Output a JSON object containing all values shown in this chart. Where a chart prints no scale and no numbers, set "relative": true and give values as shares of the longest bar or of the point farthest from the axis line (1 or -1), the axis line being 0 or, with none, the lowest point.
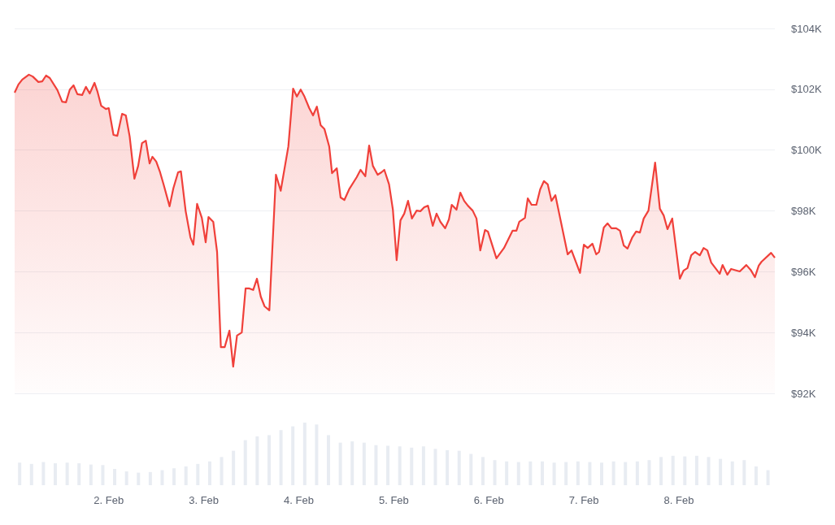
{
  "chart_data": [
    {
      "type": "area",
      "color": "#f0403a",
      "grid": "y",
      "tick_labels": "y",
      "xlim": [
        "--02-01T00:14",
        "--02-09T00:14"
      ],
      "ylim": [
        92,
        104
      ],
      "yticks": [
        {
          "value": 92,
          "label": "$92K"
        },
        {
          "value": 94,
          "label": "$94K"
        },
        {
          "value": 96,
          "label": "$96K"
        },
        {
          "value": 98,
          "label": "$98K"
        },
        {
          "value": 100,
          "label": "$100K"
        },
        {
          "value": 102,
          "label": "$102K"
        },
        {
          "value": 104,
          "label": "$104K"
        }
      ],
      "x": [
        "--02-01T00:14",
        "--02-01T01:12",
        "--02-01T02:10",
        "--02-01T03:50",
        "--02-01T04:48",
        "--02-01T06:14",
        "--02-01T07:12",
        "--02-01T08:10",
        "--02-01T09:07",
        "--02-01T11:02",
        "--02-01T12:14",
        "--02-01T13:12",
        "--02-01T14:10",
        "--02-01T15:07",
        "--02-01T16:05",
        "--02-01T17:17",
        "--02-01T18:14",
        "--02-01T19:12",
        "--02-01T20:24",
        "--02-01T21:07",
        "--02-01T22:05",
        "--02-01T23:17",
        "--02-02T00:00",
        "--02-02T01:12",
        "--02-02T02:10",
        "--02-02T03:22",
        "--02-02T04:19",
        "--02-02T05:17",
        "--02-02T06:29",
        "--02-02T07:26",
        "--02-02T08:24",
        "--02-02T09:22",
        "--02-02T10:19",
        "--02-02T11:02",
        "--02-02T12:00",
        "--02-02T12:58",
        "--02-02T13:55",
        "--02-02T15:22",
        "--02-02T16:19",
        "--02-02T17:31",
        "--02-02T18:14",
        "--02-02T19:26",
        "--02-02T20:38",
        "--02-02T21:22",
        "--02-02T22:19",
        "--02-02T23:31",
        "--02-03T00:29",
        "--02-03T01:12",
        "--02-03T02:24",
        "--02-03T03:22",
        "--02-03T04:19",
        "--02-03T05:17",
        "--02-03T06:29",
        "--02-03T07:26",
        "--02-03T08:24",
        "--02-03T09:36",
        "--02-03T10:34",
        "--02-03T11:31",
        "--02-03T12:29",
        "--02-03T13:26",
        "--02-03T14:24",
        "--02-03T15:22",
        "--02-03T16:34",
        "--02-03T18:14",
        "--02-03T19:26",
        "--02-03T21:22",
        "--02-03T22:34",
        "--02-03T23:31",
        "--02-04T00:29",
        "--02-04T01:26",
        "--02-04T02:38",
        "--02-04T03:36",
        "--02-04T04:34",
        "--02-04T05:31",
        "--02-04T06:29",
        "--02-04T07:41",
        "--02-04T08:24",
        "--02-04T09:36",
        "--02-04T10:34",
        "--02-04T11:31",
        "--02-04T12:43",
        "--02-04T14:38",
        "--02-04T15:36",
        "--02-04T16:48",
        "--02-04T17:46",
        "--02-04T18:43",
        "--02-04T19:55",
        "--02-04T20:53",
        "--02-04T21:36",
        "--02-04T22:48",
        "--02-04T23:46",
        "--02-05T00:43",
        "--02-05T01:41",
        "--02-05T02:38",
        "--02-05T03:36",
        "--02-05T04:34",
        "--02-05T05:46",
        "--02-05T06:43",
        "--02-05T07:41",
        "--02-05T08:38",
        "--02-05T09:50",
        "--02-05T10:48",
        "--02-05T11:46",
        "--02-05T12:58",
        "--02-05T13:55",
        "--02-05T14:38",
        "--02-05T15:50",
        "--02-05T16:48",
        "--02-05T17:46",
        "--02-05T18:43",
        "--02-05T19:55",
        "--02-05T20:53",
        "--02-05T21:50",
        "--02-05T23:02",
        "--02-05T23:46",
        "--02-06T01:55",
        "--02-06T03:50",
        "--02-06T06:00",
        "--02-06T06:58",
        "--02-06T07:41",
        "--02-06T09:07",
        "--02-06T09:50",
        "--02-06T10:48",
        "--02-06T12:00",
        "--02-06T12:58",
        "--02-06T13:55",
        "--02-06T14:53",
        "--02-06T15:50",
        "--02-06T16:48",
        "--02-06T19:55",
        "--02-06T20:53",
        "--02-06T23:02",
        "--02-07T00:00",
        "--02-07T00:58",
        "--02-07T02:10",
        "--02-07T03:07",
        "--02-07T03:50",
        "--02-07T05:02",
        "--02-07T06:00",
        "--02-07T06:58",
        "--02-07T08:10",
        "--02-07T09:07",
        "--02-07T10:05",
        "--02-07T11:02",
        "--02-07T12:14",
        "--02-07T13:12",
        "--02-07T14:10",
        "--02-07T15:07",
        "--02-07T16:19",
        "--02-07T18:00",
        "--02-07T19:12",
        "--02-07T20:10",
        "--02-07T21:07",
        "--02-07T22:19",
        "--02-08T00:14",
        "--02-08T01:12",
        "--02-08T02:10",
        "--02-08T03:07",
        "--02-08T04:05",
        "--02-08T05:17",
        "--02-08T06:14",
        "--02-08T07:12",
        "--02-08T08:10",
        "--02-08T10:19",
        "--02-08T11:02",
        "--02-08T12:14",
        "--02-08T13:12",
        "--02-08T15:22",
        "--02-08T17:02",
        "--02-08T18:14",
        "--02-08T19:12",
        "--02-08T20:10",
        "--02-08T20:53",
        "--02-08T23:17",
        "--02-09T00:14"
      ],
      "values": [
        101.89,
        102.16,
        102.32,
        102.48,
        102.42,
        102.24,
        102.26,
        102.45,
        102.37,
        101.97,
        101.59,
        101.57,
        101.99,
        102.13,
        101.84,
        101.81,
        102.08,
        101.86,
        102.21,
        101.94,
        101.46,
        101.35,
        101.38,
        100.5,
        100.47,
        101.19,
        101.14,
        100.45,
        99.06,
        99.48,
        100.23,
        100.31,
        99.56,
        99.78,
        99.62,
        99.27,
        98.84,
        98.15,
        98.74,
        99.27,
        99.3,
        97.99,
        97.13,
        96.89,
        98.23,
        97.77,
        96.97,
        97.8,
        97.64,
        96.65,
        93.52,
        93.52,
        94.06,
        92.88,
        93.9,
        94.0,
        95.45,
        95.45,
        95.4,
        95.77,
        95.18,
        94.86,
        94.73,
        99.19,
        98.66,
        100.12,
        102.02,
        101.76,
        101.99,
        101.76,
        101.38,
        101.14,
        101.43,
        100.82,
        100.69,
        100.12,
        99.24,
        99.4,
        98.44,
        98.36,
        98.71,
        99.11,
        99.35,
        99.14,
        100.15,
        99.48,
        99.19,
        99.27,
        99.35,
        98.87,
        98.04,
        96.38,
        97.69,
        97.91,
        98.33,
        97.75,
        98.01,
        97.99,
        98.12,
        98.17,
        97.51,
        97.91,
        97.64,
        97.43,
        97.72,
        98.2,
        98.04,
        98.6,
        98.33,
        98.17,
        98.01,
        97.75,
        96.7,
        97.37,
        97.32,
        96.44,
        96.78,
        97.35,
        97.35,
        97.64,
        97.77,
        98.41,
        98.2,
        98.2,
        98.71,
        98.98,
        98.87,
        98.33,
        98.52,
        96.57,
        96.7,
        95.96,
        96.89,
        96.78,
        96.92,
        96.57,
        96.65,
        97.45,
        97.59,
        97.43,
        97.43,
        97.35,
        96.86,
        96.76,
        97.13,
        97.32,
        97.29,
        97.75,
        98.01,
        99.59,
        98.07,
        97.85,
        97.4,
        97.75,
        95.77,
        96.04,
        96.12,
        96.54,
        96.65,
        96.54,
        96.78,
        96.7,
        96.3,
        95.93,
        96.22,
        95.9,
        96.09,
        96.01,
        96.22,
        96.04,
        95.82,
        96.2,
        96.33,
        96.62,
        96.46
      ]
    },
    {
      "type": "bar",
      "relative": true,
      "color": "#e8ecf2",
      "tick_labels": "x",
      "xlim": [
        "--02-01T00:14",
        "--02-09T00:14"
      ],
      "xticks": [
        {
          "value": "--02-02",
          "label": "2. Feb"
        },
        {
          "value": "--02-03",
          "label": "3. Feb"
        },
        {
          "value": "--02-04",
          "label": "4. Feb"
        },
        {
          "value": "--02-05",
          "label": "5. Feb"
        },
        {
          "value": "--02-06",
          "label": "6. Feb"
        },
        {
          "value": "--02-07",
          "label": "7. Feb"
        },
        {
          "value": "--02-08",
          "label": "8. Feb"
        }
      ],
      "x": [
        "--02-01T01:30",
        "--02-01T04:30",
        "--02-01T07:30",
        "--02-01T10:30",
        "--02-01T13:30",
        "--02-01T16:30",
        "--02-01T19:30",
        "--02-01T22:30",
        "--02-02T01:30",
        "--02-02T04:30",
        "--02-02T07:30",
        "--02-02T10:30",
        "--02-02T13:30",
        "--02-02T16:30",
        "--02-02T19:30",
        "--02-02T22:30",
        "--02-03T01:30",
        "--02-03T04:30",
        "--02-03T07:30",
        "--02-03T10:30",
        "--02-03T13:30",
        "--02-03T16:30",
        "--02-03T19:30",
        "--02-03T22:30",
        "--02-04T01:30",
        "--02-04T04:30",
        "--02-04T07:30",
        "--02-04T10:30",
        "--02-04T13:30",
        "--02-04T16:30",
        "--02-04T19:30",
        "--02-04T22:30",
        "--02-05T01:30",
        "--02-05T04:30",
        "--02-05T07:30",
        "--02-05T10:30",
        "--02-05T13:30",
        "--02-05T16:30",
        "--02-05T19:30",
        "--02-05T22:30",
        "--02-06T01:30",
        "--02-06T04:30",
        "--02-06T07:30",
        "--02-06T10:30",
        "--02-06T13:30",
        "--02-06T16:30",
        "--02-06T19:30",
        "--02-06T22:30",
        "--02-07T01:30",
        "--02-07T04:30",
        "--02-07T07:30",
        "--02-07T10:30",
        "--02-07T13:30",
        "--02-07T16:30",
        "--02-07T19:30",
        "--02-07T22:30",
        "--02-08T01:30",
        "--02-08T04:30",
        "--02-08T07:30",
        "--02-08T10:30",
        "--02-08T13:30",
        "--02-08T16:30",
        "--02-08T19:30",
        "--02-08T22:30"
      ],
      "values": [
        0.36,
        0.34,
        0.37,
        0.35,
        0.36,
        0.35,
        0.33,
        0.32,
        0.26,
        0.22,
        0.2,
        0.21,
        0.24,
        0.27,
        0.3,
        0.34,
        0.38,
        0.45,
        0.55,
        0.72,
        0.78,
        0.8,
        0.88,
        0.94,
        1.0,
        0.97,
        0.8,
        0.68,
        0.7,
        0.68,
        0.64,
        0.63,
        0.62,
        0.6,
        0.62,
        0.58,
        0.56,
        0.55,
        0.5,
        0.45,
        0.4,
        0.38,
        0.37,
        0.38,
        0.38,
        0.36,
        0.37,
        0.38,
        0.37,
        0.36,
        0.38,
        0.37,
        0.38,
        0.4,
        0.45,
        0.47,
        0.46,
        0.47,
        0.45,
        0.42,
        0.38,
        0.4,
        0.3,
        0.24
      ]
    }
  ]
}
